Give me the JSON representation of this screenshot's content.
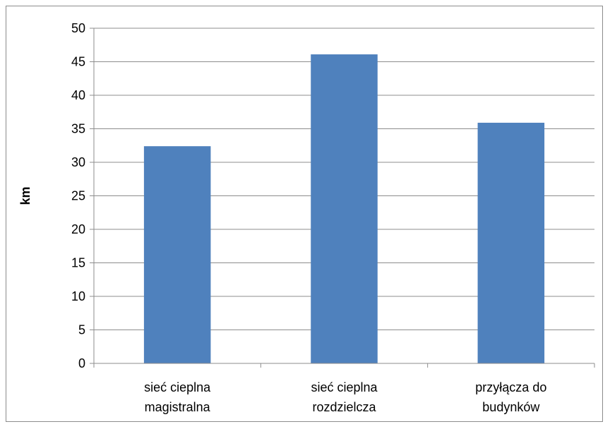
{
  "chart_data": {
    "type": "bar",
    "categories": [
      [
        "sieć cieplna",
        "magistralna"
      ],
      [
        "sieć cieplna",
        "rozdzielcza"
      ],
      [
        "przyłącza do",
        "budynków"
      ]
    ],
    "values": [
      32.4,
      46.1,
      35.9
    ],
    "ylabel": "km",
    "xlabel": "",
    "ylim": [
      0,
      50
    ],
    "yticks": [
      0,
      5,
      10,
      15,
      20,
      25,
      30,
      35,
      40,
      45,
      50
    ],
    "grid": true,
    "bar_color": "#4f81bd",
    "grid_color": "#8c8c8c",
    "legend": "none"
  }
}
